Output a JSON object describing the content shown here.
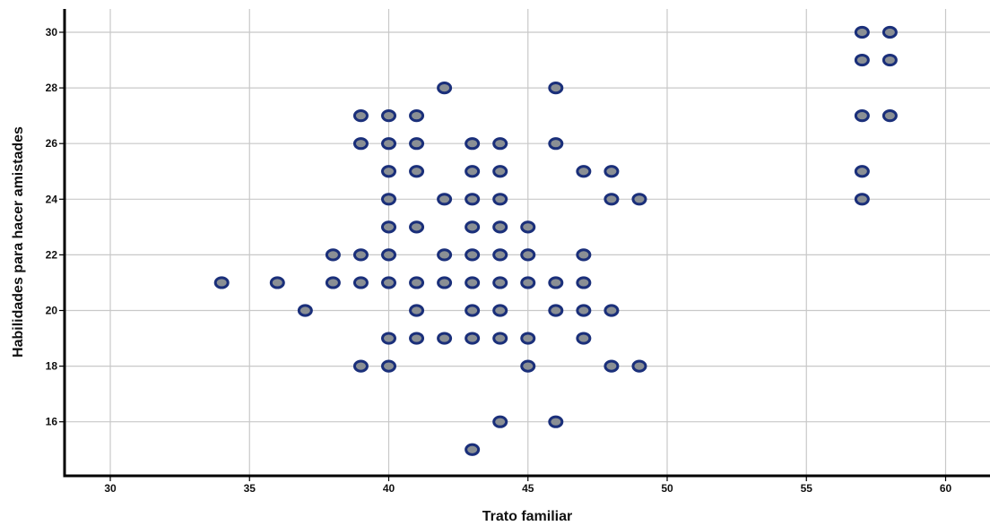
{
  "chart_data": {
    "type": "scatter",
    "xlabel": "Trato familiar",
    "ylabel": "Habilidades para hacer amistades",
    "xlim": [
      28.5,
      61.5
    ],
    "ylim": [
      14.2,
      30.8
    ],
    "xticks": [
      30,
      35,
      40,
      45,
      50,
      55,
      60
    ],
    "yticks": [
      16,
      18,
      20,
      22,
      24,
      26,
      28,
      30
    ],
    "grid": true,
    "marker_fill": "#8a8f94",
    "marker_edge": "#1a2f7a",
    "points": [
      {
        "x": 34,
        "y": 21
      },
      {
        "x": 36,
        "y": 21
      },
      {
        "x": 37,
        "y": 20
      },
      {
        "x": 38,
        "y": 22
      },
      {
        "x": 38,
        "y": 21
      },
      {
        "x": 39,
        "y": 27
      },
      {
        "x": 39,
        "y": 26
      },
      {
        "x": 39,
        "y": 22
      },
      {
        "x": 39,
        "y": 21
      },
      {
        "x": 39,
        "y": 18
      },
      {
        "x": 40,
        "y": 27
      },
      {
        "x": 40,
        "y": 26
      },
      {
        "x": 40,
        "y": 25
      },
      {
        "x": 40,
        "y": 24
      },
      {
        "x": 40,
        "y": 23
      },
      {
        "x": 40,
        "y": 22
      },
      {
        "x": 40,
        "y": 21
      },
      {
        "x": 40,
        "y": 19
      },
      {
        "x": 40,
        "y": 18
      },
      {
        "x": 41,
        "y": 27
      },
      {
        "x": 41,
        "y": 26
      },
      {
        "x": 41,
        "y": 25
      },
      {
        "x": 41,
        "y": 23
      },
      {
        "x": 41,
        "y": 21
      },
      {
        "x": 41,
        "y": 20
      },
      {
        "x": 41,
        "y": 19
      },
      {
        "x": 42,
        "y": 28
      },
      {
        "x": 42,
        "y": 24
      },
      {
        "x": 42,
        "y": 22
      },
      {
        "x": 42,
        "y": 21
      },
      {
        "x": 42,
        "y": 19
      },
      {
        "x": 43,
        "y": 26
      },
      {
        "x": 43,
        "y": 25
      },
      {
        "x": 43,
        "y": 24
      },
      {
        "x": 43,
        "y": 23
      },
      {
        "x": 43,
        "y": 22
      },
      {
        "x": 43,
        "y": 21
      },
      {
        "x": 43,
        "y": 20
      },
      {
        "x": 43,
        "y": 19
      },
      {
        "x": 43,
        "y": 15
      },
      {
        "x": 44,
        "y": 26
      },
      {
        "x": 44,
        "y": 25
      },
      {
        "x": 44,
        "y": 24
      },
      {
        "x": 44,
        "y": 23
      },
      {
        "x": 44,
        "y": 22
      },
      {
        "x": 44,
        "y": 21
      },
      {
        "x": 44,
        "y": 20
      },
      {
        "x": 44,
        "y": 19
      },
      {
        "x": 44,
        "y": 16
      },
      {
        "x": 45,
        "y": 23
      },
      {
        "x": 45,
        "y": 22
      },
      {
        "x": 45,
        "y": 21
      },
      {
        "x": 45,
        "y": 19
      },
      {
        "x": 45,
        "y": 18
      },
      {
        "x": 46,
        "y": 28
      },
      {
        "x": 46,
        "y": 26
      },
      {
        "x": 46,
        "y": 21
      },
      {
        "x": 46,
        "y": 20
      },
      {
        "x": 46,
        "y": 16
      },
      {
        "x": 47,
        "y": 25
      },
      {
        "x": 47,
        "y": 22
      },
      {
        "x": 47,
        "y": 21
      },
      {
        "x": 47,
        "y": 20
      },
      {
        "x": 47,
        "y": 19
      },
      {
        "x": 48,
        "y": 25
      },
      {
        "x": 48,
        "y": 24
      },
      {
        "x": 48,
        "y": 20
      },
      {
        "x": 48,
        "y": 18
      },
      {
        "x": 49,
        "y": 24
      },
      {
        "x": 49,
        "y": 18
      },
      {
        "x": 57,
        "y": 30
      },
      {
        "x": 57,
        "y": 29
      },
      {
        "x": 57,
        "y": 27
      },
      {
        "x": 57,
        "y": 25
      },
      {
        "x": 57,
        "y": 24
      },
      {
        "x": 58,
        "y": 30
      },
      {
        "x": 58,
        "y": 29
      },
      {
        "x": 58,
        "y": 27
      }
    ]
  }
}
